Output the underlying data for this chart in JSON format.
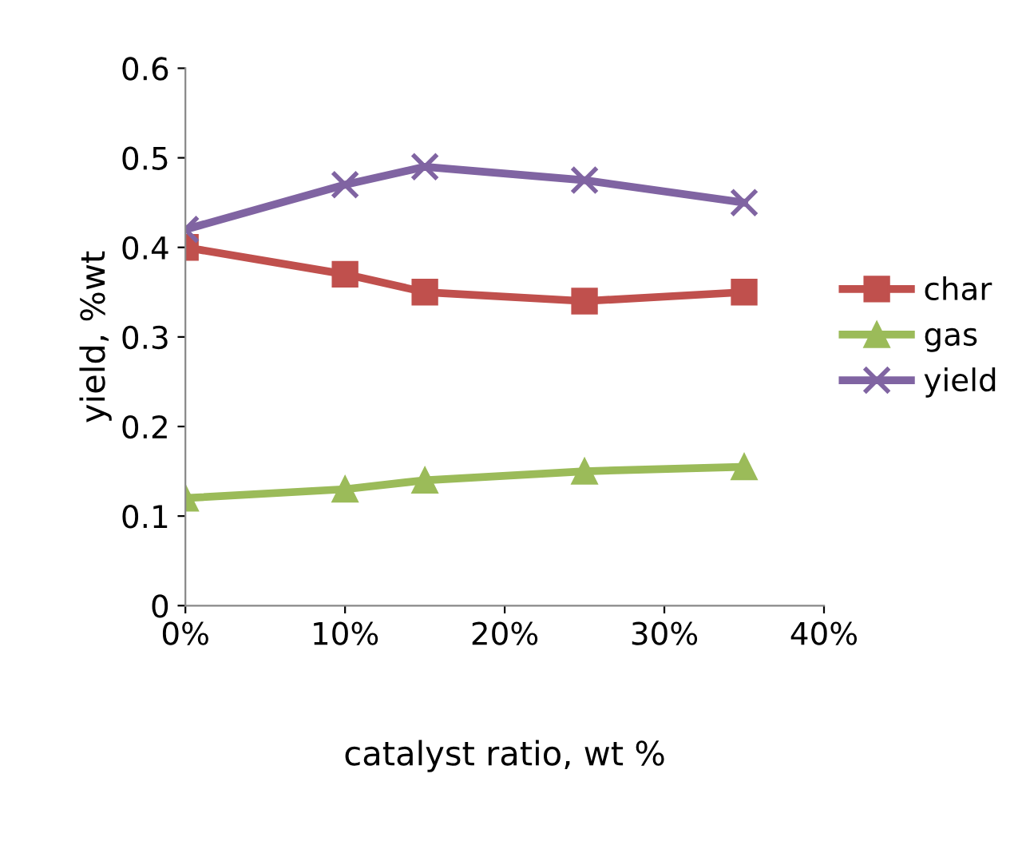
{
  "chart_data": {
    "type": "line",
    "xlabel": "catalyst ratio, wt %",
    "ylabel": "yield, %wt",
    "x": [
      0,
      10,
      15,
      25,
      35
    ],
    "series": [
      {
        "name": "char",
        "color": "#c0504d",
        "marker": "square",
        "values": [
          0.4,
          0.37,
          0.35,
          0.34,
          0.35
        ]
      },
      {
        "name": "gas",
        "color": "#9bbb59",
        "marker": "triangle",
        "values": [
          0.12,
          0.13,
          0.14,
          0.15,
          0.155
        ]
      },
      {
        "name": "yield",
        "color": "#8064a2",
        "marker": "cross",
        "values": [
          0.42,
          0.47,
          0.49,
          0.475,
          0.45
        ]
      }
    ],
    "xlim": [
      0,
      40
    ],
    "xticks": [
      {
        "value": 0,
        "label": "0%"
      },
      {
        "value": 10,
        "label": "10%"
      },
      {
        "value": 20,
        "label": "20%"
      },
      {
        "value": 30,
        "label": "30%"
      },
      {
        "value": 40,
        "label": "40%"
      }
    ],
    "ylim": [
      0,
      0.6
    ],
    "yticks": [
      {
        "value": 0,
        "label": "0"
      },
      0.1,
      0.2,
      0.3,
      0.4,
      0.5,
      0.6
    ],
    "grid": false,
    "legend": "right",
    "line_style": "solid"
  }
}
